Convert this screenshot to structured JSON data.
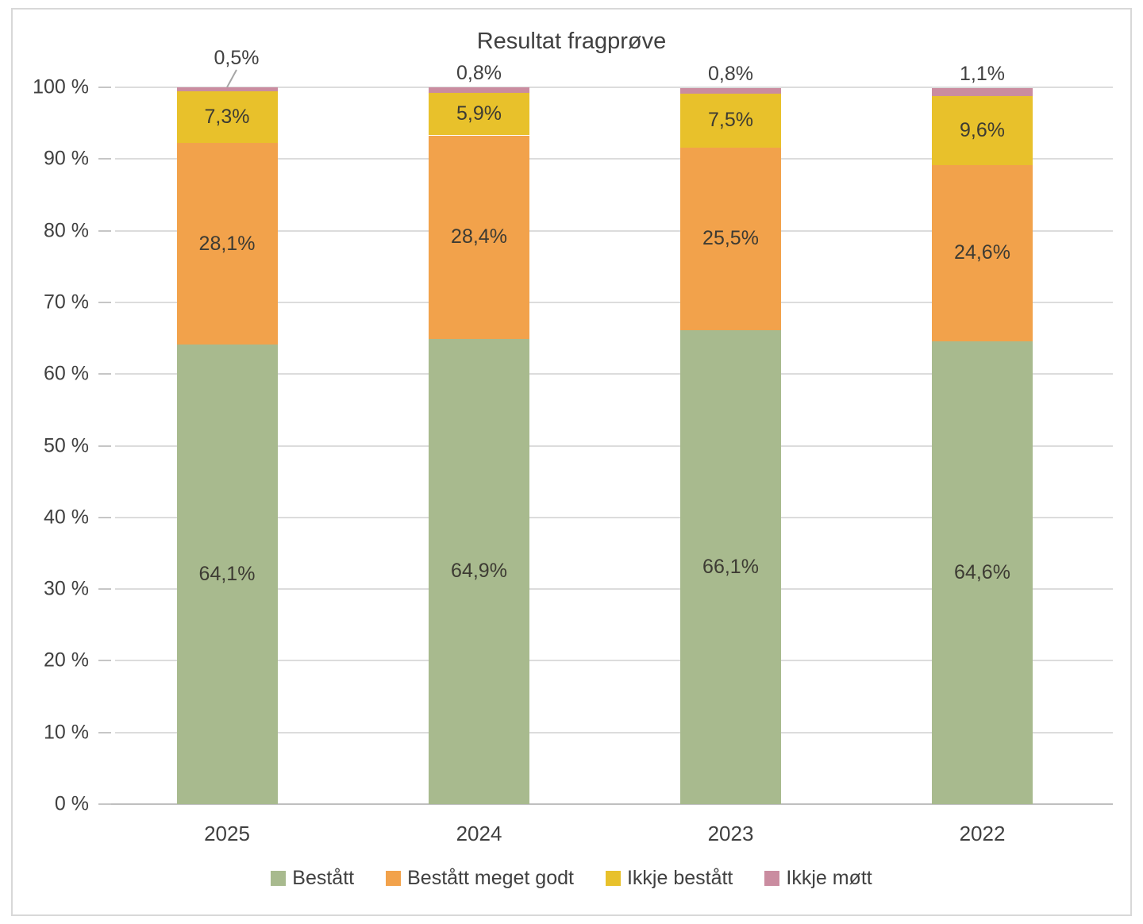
{
  "chart_data": {
    "type": "bar",
    "stacked": true,
    "orientation": "vertical",
    "title": "Resultat fragprøve",
    "categories": [
      "2025",
      "2024",
      "2023",
      "2022"
    ],
    "series": [
      {
        "name": "Bestått",
        "color": "#a8ba8e",
        "values": [
          64.1,
          64.9,
          66.1,
          64.6
        ],
        "labels": [
          "64,1%",
          "64,9%",
          "66,1%",
          "64,6%"
        ],
        "label_position": "inside"
      },
      {
        "name": "Bestått meget godt",
        "color": "#f2a24b",
        "values": [
          28.1,
          28.4,
          25.5,
          24.6
        ],
        "labels": [
          "28,1%",
          "28,4%",
          "25,5%",
          "24,6%"
        ],
        "label_position": "inside"
      },
      {
        "name": "Ikkje bestått",
        "color": "#e8c12b",
        "values": [
          7.3,
          5.9,
          7.5,
          9.6
        ],
        "labels": [
          "7,3%",
          "5,9%",
          "7,5%",
          "9,6%"
        ],
        "label_position": "inside"
      },
      {
        "name": "Ikkje møtt",
        "color": "#ca8ca0",
        "values": [
          0.5,
          0.8,
          0.8,
          1.1
        ],
        "labels": [
          "0,5%",
          "0,8%",
          "0,8%",
          "1,1%"
        ],
        "label_position": "above"
      }
    ],
    "y_axis": {
      "min": 0,
      "max": 100,
      "tick_labels": [
        "0 %",
        "10 %",
        "20 %",
        "30 %",
        "40 %",
        "50 %",
        "60 %",
        "70 %",
        "80 %",
        "90 %",
        "100 %"
      ],
      "grid": true
    },
    "legend": {
      "position": "bottom",
      "entries": [
        "Bestått",
        "Bestått meget godt",
        "Ikkje bestått",
        "Ikkje møtt"
      ]
    },
    "annotations": {
      "first_bar_top_label_has_leader_line": true,
      "leader_line_color": "#a6a6a6"
    }
  }
}
